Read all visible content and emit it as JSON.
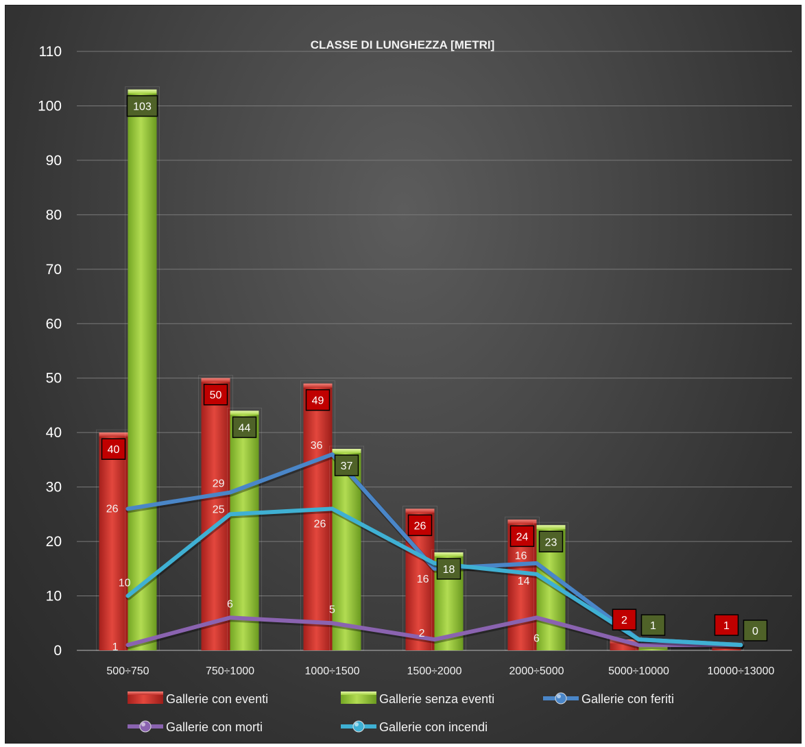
{
  "chart_data": {
    "type": "bar",
    "title": "CLASSE DI LUNGHEZZA [METRI]",
    "categories": [
      "500÷750",
      "750÷1000",
      "1000÷1500",
      "1500÷2000",
      "2000÷5000",
      "5000÷10000",
      "10000÷13000"
    ],
    "ylim": [
      0,
      110
    ],
    "yticks": [
      0,
      10,
      20,
      30,
      40,
      50,
      60,
      70,
      80,
      90,
      100,
      110
    ],
    "grid": true,
    "legend_position": "bottom",
    "series": [
      {
        "name": "Gallerie con eventi",
        "type": "bar",
        "color": "#d9372f",
        "values": [
          40,
          50,
          49,
          26,
          24,
          2,
          1
        ]
      },
      {
        "name": "Gallerie senza eventi",
        "type": "bar",
        "color": "#9ccb3c",
        "values": [
          103,
          44,
          37,
          18,
          23,
          1,
          0
        ]
      },
      {
        "name": "Gallerie con feriti",
        "type": "line",
        "color": "#4a86c8",
        "values": [
          26,
          29,
          36,
          15,
          16,
          2,
          1
        ],
        "labels": [
          "26",
          "29",
          "36",
          "",
          "16",
          "",
          ""
        ]
      },
      {
        "name": "Gallerie con morti",
        "type": "line",
        "color": "#8a63b0",
        "values": [
          1,
          6,
          5,
          2,
          6,
          1,
          1
        ],
        "labels": [
          "1",
          "6",
          "5",
          "2",
          "6",
          "",
          ""
        ]
      },
      {
        "name": "Gallerie con incendi",
        "type": "line",
        "color": "#3fb0d3",
        "values": [
          10,
          25,
          26,
          16,
          14,
          2,
          1
        ],
        "labels": [
          "10",
          "25",
          "26",
          "16",
          "14",
          "",
          ""
        ]
      }
    ]
  }
}
